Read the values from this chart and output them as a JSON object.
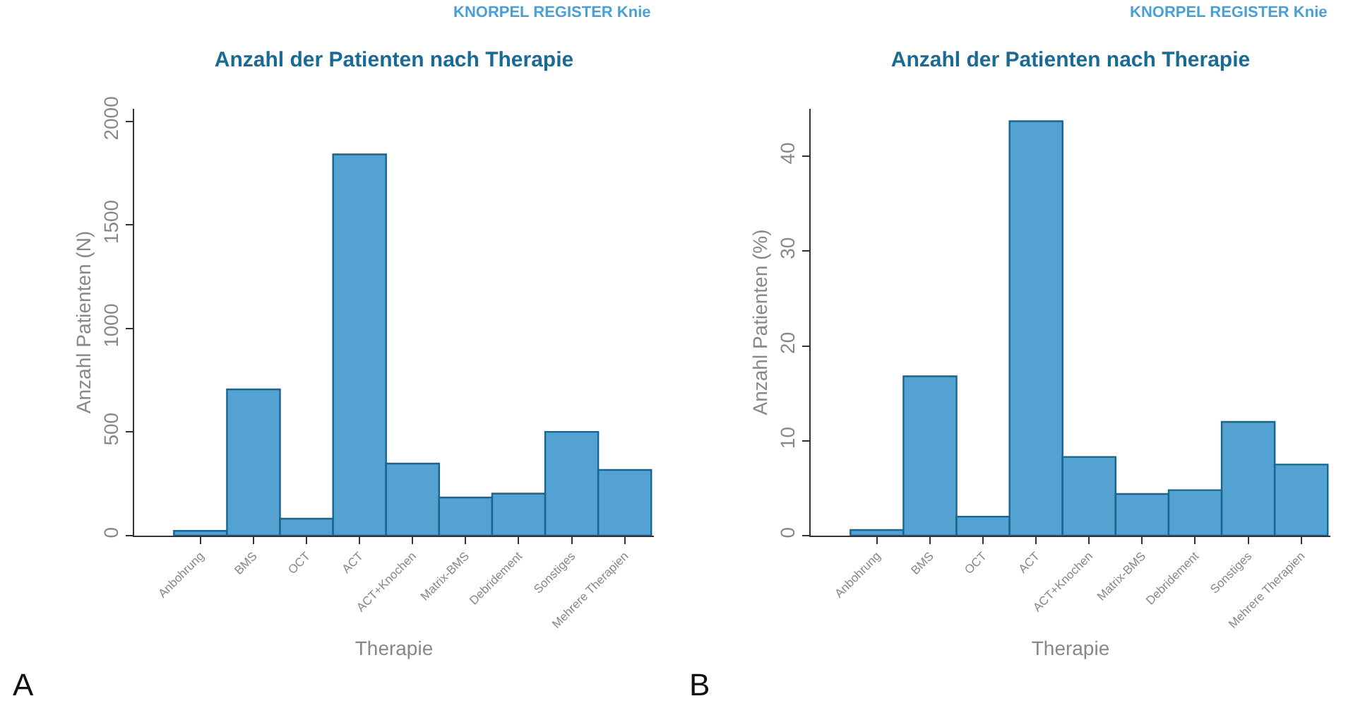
{
  "chart_data": [
    {
      "type": "bar",
      "title": "Anzahl der Patienten nach Therapie",
      "xlabel": "Therapie",
      "ylabel": "Anzahl Patienten (N)",
      "categories": [
        "Anbohrung",
        "BMS",
        "OCT",
        "ACT",
        "ACT+Knochen",
        "Matrix-BMS",
        "Debridement",
        "Sonstiges",
        "Mehrere Therapien"
      ],
      "series": [
        {
          "color": "#53a2d2",
          "values": [
            23,
            706,
            82,
            1840,
            348,
            184,
            203,
            501,
            317
          ]
        }
      ],
      "ylim": [
        0,
        2060
      ],
      "yticks": [
        0,
        500,
        1000,
        1500,
        2000
      ],
      "grid": false,
      "annotations": [
        "KNORPEL REGISTER Knie",
        "A"
      ]
    },
    {
      "type": "bar",
      "title": "Anzahl der Patienten nach Therapie",
      "xlabel": "Therapie",
      "ylabel": "Anzahl Patienten (%)",
      "categories": [
        "Anbohrung",
        "BMS",
        "OCT",
        "ACT",
        "ACT+Knochen",
        "Matrix-BMS",
        "Debridement",
        "Sonstiges",
        "Mehrere Therapien"
      ],
      "series": [
        {
          "color": "#53a2d2",
          "values": [
            0.6,
            16.8,
            2.0,
            43.7,
            8.3,
            4.4,
            4.8,
            12.0,
            7.5
          ]
        }
      ],
      "ylim": [
        0,
        45
      ],
      "yticks": [
        0,
        10,
        20,
        30,
        40
      ],
      "grid": false,
      "annotations": [
        "KNORPEL REGISTER Knie",
        "B"
      ]
    }
  ]
}
